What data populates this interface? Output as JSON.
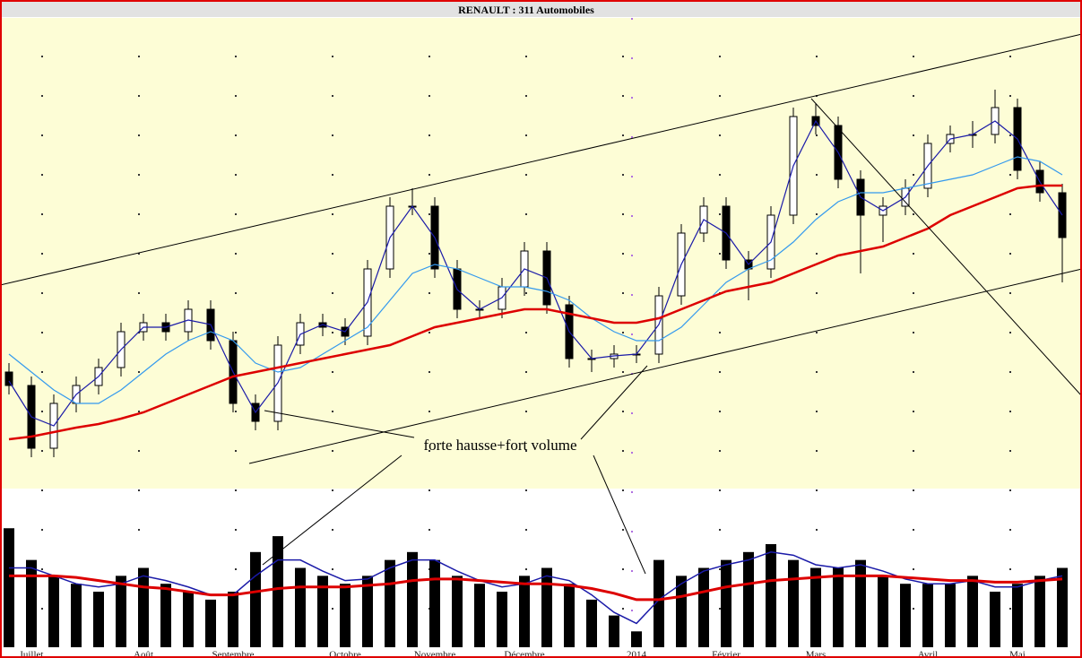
{
  "chart_data": {
    "type": "candlestick",
    "title": "RENAULT : 311 Automobiles",
    "annotation": "forte hausse+fort volume",
    "categories": [
      null,
      "Juillet",
      null,
      null,
      null,
      null,
      "Août",
      null,
      null,
      null,
      "Septembre",
      null,
      null,
      null,
      null,
      "Octobre",
      null,
      null,
      null,
      "Novembre",
      null,
      null,
      null,
      "Décembre",
      null,
      null,
      null,
      null,
      "2014",
      null,
      null,
      null,
      "Février",
      null,
      null,
      null,
      "Mars",
      null,
      null,
      null,
      null,
      "Avril",
      null,
      null,
      null,
      "Mai",
      null,
      null
    ],
    "open": [
      130,
      115,
      45,
      95,
      115,
      135,
      175,
      185,
      175,
      200,
      165,
      95,
      75,
      160,
      185,
      180,
      170,
      245,
      315,
      315,
      245,
      200,
      200,
      225,
      265,
      205,
      145,
      145,
      150,
      150,
      215,
      285,
      315,
      255,
      245,
      305,
      415,
      405,
      345,
      305,
      315,
      335,
      385,
      395,
      395,
      425,
      355,
      330
    ],
    "high": [
      140,
      125,
      105,
      125,
      145,
      185,
      195,
      195,
      210,
      210,
      175,
      105,
      170,
      195,
      195,
      190,
      255,
      325,
      335,
      325,
      255,
      210,
      235,
      275,
      275,
      215,
      155,
      160,
      160,
      225,
      295,
      325,
      325,
      265,
      315,
      425,
      430,
      415,
      355,
      325,
      345,
      395,
      405,
      410,
      445,
      435,
      365,
      340
    ],
    "low": [
      105,
      35,
      35,
      85,
      105,
      125,
      165,
      165,
      165,
      155,
      85,
      65,
      65,
      150,
      170,
      160,
      160,
      235,
      305,
      235,
      190,
      190,
      190,
      215,
      195,
      135,
      130,
      135,
      140,
      140,
      205,
      275,
      245,
      210,
      235,
      295,
      395,
      335,
      240,
      275,
      305,
      325,
      375,
      380,
      385,
      345,
      320,
      230
    ],
    "close": [
      115,
      45,
      95,
      115,
      135,
      175,
      185,
      175,
      200,
      165,
      95,
      75,
      160,
      185,
      180,
      170,
      245,
      315,
      315,
      245,
      200,
      200,
      225,
      265,
      205,
      145,
      145,
      150,
      150,
      215,
      285,
      315,
      255,
      245,
      305,
      415,
      405,
      345,
      305,
      315,
      335,
      385,
      395,
      395,
      425,
      355,
      330,
      280
    ],
    "ylim": [
      0,
      525
    ],
    "color_up": "#ffffff",
    "color_down": "#000000",
    "lines": [
      {
        "color": "#1a1aa8",
        "values": [
          120,
          80,
          70,
          105,
          125,
          155,
          180,
          180,
          188,
          183,
          130,
          85,
          118,
          172,
          183,
          175,
          208,
          280,
          315,
          280,
          222,
          200,
          213,
          245,
          235,
          175,
          145,
          148,
          150,
          183,
          250,
          300,
          285,
          250,
          275,
          360,
          410,
          375,
          325,
          310,
          325,
          360,
          390,
          395,
          410,
          390,
          342,
          305
        ]
      },
      {
        "color": "#3399ee",
        "values": [
          150,
          130,
          110,
          95,
          95,
          110,
          130,
          150,
          165,
          175,
          165,
          140,
          130,
          135,
          150,
          165,
          180,
          210,
          240,
          250,
          245,
          235,
          225,
          225,
          220,
          210,
          190,
          175,
          165,
          165,
          180,
          205,
          230,
          245,
          255,
          275,
          300,
          320,
          330,
          330,
          335,
          340,
          345,
          350,
          360,
          370,
          365,
          350
        ]
      },
      {
        "color": "#dd0000",
        "values": [
          55,
          58,
          63,
          68,
          72,
          78,
          85,
          95,
          105,
          115,
          125,
          130,
          135,
          140,
          145,
          150,
          155,
          160,
          170,
          180,
          185,
          190,
          195,
          200,
          200,
          195,
          190,
          185,
          185,
          190,
          200,
          210,
          220,
          225,
          230,
          240,
          250,
          260,
          265,
          270,
          280,
          290,
          305,
          315,
          325,
          335,
          338,
          338
        ]
      }
    ],
    "volume": {
      "color": "#000000",
      "ylim": [
        0,
        100
      ],
      "values": [
        75,
        55,
        45,
        40,
        35,
        45,
        50,
        40,
        35,
        30,
        35,
        60,
        70,
        50,
        45,
        40,
        45,
        55,
        60,
        55,
        45,
        40,
        35,
        45,
        50,
        40,
        30,
        20,
        10,
        55,
        45,
        50,
        55,
        60,
        65,
        55,
        50,
        50,
        55,
        45,
        40,
        40,
        40,
        45,
        35,
        40,
        45,
        50
      ],
      "lines": [
        {
          "color": "#1a1aa8",
          "values": [
            50,
            50,
            45,
            40,
            38,
            40,
            45,
            42,
            38,
            33,
            33,
            45,
            55,
            55,
            48,
            42,
            43,
            50,
            55,
            55,
            48,
            42,
            38,
            40,
            45,
            42,
            33,
            22,
            15,
            30,
            40,
            48,
            52,
            55,
            60,
            58,
            52,
            50,
            52,
            48,
            43,
            40,
            40,
            42,
            38,
            38,
            42,
            45
          ]
        },
        {
          "color": "#dd0000",
          "values": [
            45,
            45,
            45,
            44,
            42,
            40,
            38,
            37,
            35,
            33,
            33,
            35,
            37,
            38,
            38,
            38,
            39,
            40,
            42,
            43,
            43,
            42,
            41,
            40,
            40,
            39,
            37,
            34,
            30,
            30,
            32,
            35,
            38,
            40,
            42,
            43,
            44,
            45,
            45,
            45,
            44,
            43,
            42,
            42,
            41,
            41,
            42,
            43
          ]
        }
      ]
    }
  }
}
